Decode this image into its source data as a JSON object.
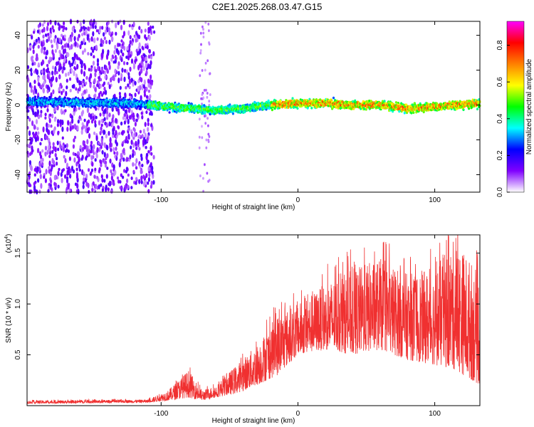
{
  "title": "C2E1.2025.268.03.47.G15",
  "chart_data": [
    {
      "type": "heatmap",
      "xlabel": "Height of straight line (km)",
      "ylabel": "Frequency (Hz)",
      "xlim": [
        -198,
        133
      ],
      "ylim": [
        -50,
        48
      ],
      "xticks": [
        -100,
        0,
        100
      ],
      "xtick_labels": [
        "-100",
        "0",
        "100"
      ],
      "yticks": [
        -40,
        -20,
        0,
        20,
        40
      ],
      "ytick_labels": [
        "-40",
        "-20",
        "0",
        "20",
        "40"
      ],
      "colorbar": {
        "label": "Normalized spectral amplitude",
        "range": [
          0,
          0.93
        ],
        "ticks": [
          0,
          0.2,
          0.4,
          0.6,
          0.8
        ],
        "tick_labels": [
          "0.0",
          "0.2",
          "0.4",
          "0.6",
          "0.8"
        ],
        "colors": [
          "#ffffff",
          "#8000ff",
          "#0000ff",
          "#00ffff",
          "#00ff00",
          "#ffff00",
          "#ff8000",
          "#ff0000",
          "#ff00ff"
        ]
      },
      "band_center_hz": [
        {
          "x": -198,
          "y": 2
        },
        {
          "x": -120,
          "y": 1
        },
        {
          "x": -80,
          "y": -2
        },
        {
          "x": -60,
          "y": -3
        },
        {
          "x": -40,
          "y": -2
        },
        {
          "x": -20,
          "y": 0
        },
        {
          "x": 0,
          "y": 1
        },
        {
          "x": 20,
          "y": 1
        },
        {
          "x": 40,
          "y": 0
        },
        {
          "x": 60,
          "y": 0
        },
        {
          "x": 80,
          "y": -2
        },
        {
          "x": 100,
          "y": -1
        },
        {
          "x": 133,
          "y": 1
        }
      ]
    },
    {
      "type": "line",
      "xlabel": "Height of straight line (km)",
      "ylabel": "SNR (10 * v/v)",
      "y_multiplier": "(x10",
      "y_multiplier_exp": "4",
      "y_multiplier_close": ")",
      "xlim": [
        -198,
        133
      ],
      "ylim": [
        0,
        1.68
      ],
      "xticks": [
        -100,
        0,
        100
      ],
      "xtick_labels": [
        "-100",
        "0",
        "100"
      ],
      "yticks": [
        0.5,
        1.0,
        1.5
      ],
      "ytick_labels": [
        "0.5",
        "1.0",
        "1.5"
      ],
      "color": "#f03030",
      "envelope": [
        {
          "x": -198,
          "lo": 0.02,
          "hi": 0.05
        },
        {
          "x": -110,
          "lo": 0.03,
          "hi": 0.06
        },
        {
          "x": -95,
          "lo": 0.05,
          "hi": 0.15
        },
        {
          "x": -80,
          "lo": 0.08,
          "hi": 0.35
        },
        {
          "x": -70,
          "lo": 0.05,
          "hi": 0.15
        },
        {
          "x": -60,
          "lo": 0.08,
          "hi": 0.2
        },
        {
          "x": -45,
          "lo": 0.12,
          "hi": 0.4
        },
        {
          "x": -30,
          "lo": 0.2,
          "hi": 0.6
        },
        {
          "x": -15,
          "lo": 0.3,
          "hi": 0.9
        },
        {
          "x": 0,
          "lo": 0.5,
          "hi": 1.0
        },
        {
          "x": 20,
          "lo": 0.55,
          "hi": 1.2
        },
        {
          "x": 40,
          "lo": 0.5,
          "hi": 1.35
        },
        {
          "x": 60,
          "lo": 0.55,
          "hi": 1.45
        },
        {
          "x": 80,
          "lo": 0.45,
          "hi": 1.3
        },
        {
          "x": 100,
          "lo": 0.4,
          "hi": 1.35
        },
        {
          "x": 115,
          "lo": 0.35,
          "hi": 1.65
        },
        {
          "x": 133,
          "lo": 0.2,
          "hi": 1.3
        }
      ]
    }
  ]
}
